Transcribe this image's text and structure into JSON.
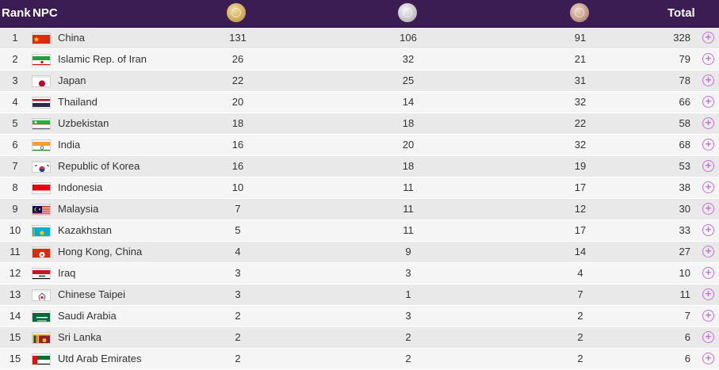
{
  "header": {
    "rank": "Rank",
    "npc": "NPC",
    "total": "Total"
  },
  "medals": {
    "gold_icon": "gold-medal",
    "silver_icon": "silver-medal",
    "bronze_icon": "bronze-medal"
  },
  "colors": {
    "header_bg": "#3c1d53",
    "expand_icon": "#c56fd6"
  },
  "rows": [
    {
      "rank": "1",
      "country": "China",
      "flag": "china-flag",
      "gold": "131",
      "silver": "106",
      "bronze": "91",
      "total": "328"
    },
    {
      "rank": "2",
      "country": "Islamic Rep. of Iran",
      "flag": "iran-flag",
      "gold": "26",
      "silver": "32",
      "bronze": "21",
      "total": "79"
    },
    {
      "rank": "3",
      "country": "Japan",
      "flag": "japan-flag",
      "gold": "22",
      "silver": "25",
      "bronze": "31",
      "total": "78"
    },
    {
      "rank": "4",
      "country": "Thailand",
      "flag": "thailand-flag",
      "gold": "20",
      "silver": "14",
      "bronze": "32",
      "total": "66"
    },
    {
      "rank": "5",
      "country": "Uzbekistan",
      "flag": "uzbekistan-flag",
      "gold": "18",
      "silver": "18",
      "bronze": "22",
      "total": "58"
    },
    {
      "rank": "6",
      "country": "India",
      "flag": "india-flag",
      "gold": "16",
      "silver": "20",
      "bronze": "32",
      "total": "68"
    },
    {
      "rank": "7",
      "country": "Republic of Korea",
      "flag": "korea-flag",
      "gold": "16",
      "silver": "18",
      "bronze": "19",
      "total": "53"
    },
    {
      "rank": "8",
      "country": "Indonesia",
      "flag": "indonesia-flag",
      "gold": "10",
      "silver": "11",
      "bronze": "17",
      "total": "38"
    },
    {
      "rank": "9",
      "country": "Malaysia",
      "flag": "malaysia-flag",
      "gold": "7",
      "silver": "11",
      "bronze": "12",
      "total": "30"
    },
    {
      "rank": "10",
      "country": "Kazakhstan",
      "flag": "kazakhstan-flag",
      "gold": "5",
      "silver": "11",
      "bronze": "17",
      "total": "33"
    },
    {
      "rank": "11",
      "country": "Hong Kong, China",
      "flag": "hong-kong-flag",
      "gold": "4",
      "silver": "9",
      "bronze": "14",
      "total": "27"
    },
    {
      "rank": "12",
      "country": "Iraq",
      "flag": "iraq-flag",
      "gold": "3",
      "silver": "3",
      "bronze": "4",
      "total": "10"
    },
    {
      "rank": "13",
      "country": "Chinese Taipei",
      "flag": "chinese-taipei-flag",
      "gold": "3",
      "silver": "1",
      "bronze": "7",
      "total": "11"
    },
    {
      "rank": "14",
      "country": "Saudi Arabia",
      "flag": "saudi-arabia-flag",
      "gold": "2",
      "silver": "3",
      "bronze": "2",
      "total": "7"
    },
    {
      "rank": "15",
      "country": "Sri Lanka",
      "flag": "sri-lanka-flag",
      "gold": "2",
      "silver": "2",
      "bronze": "2",
      "total": "6"
    },
    {
      "rank": "15",
      "country": "Utd Arab Emirates",
      "flag": "uae-flag",
      "gold": "2",
      "silver": "2",
      "bronze": "2",
      "total": "6"
    }
  ]
}
